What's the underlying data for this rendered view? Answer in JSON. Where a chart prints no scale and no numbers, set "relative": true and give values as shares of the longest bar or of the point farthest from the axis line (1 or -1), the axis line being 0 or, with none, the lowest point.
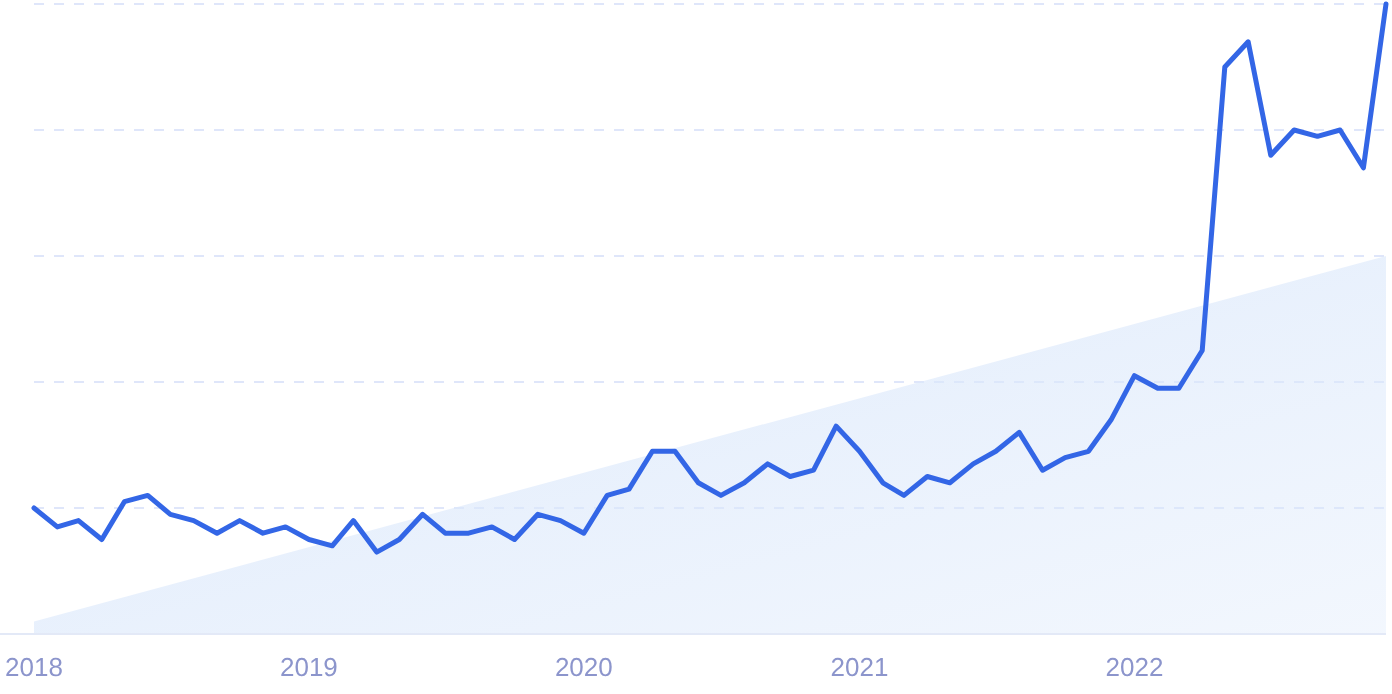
{
  "chart_data": {
    "type": "line",
    "relative": true,
    "grid": "y",
    "xlim": [
      "2018-01",
      "2022-12"
    ],
    "xticks": [
      "2018",
      "2019",
      "2020",
      "2021",
      "2022"
    ],
    "x": [
      "2018-01",
      "2018-02",
      "2018-03",
      "2018-04",
      "2018-05",
      "2018-06",
      "2018-07",
      "2018-08",
      "2018-09",
      "2018-10",
      "2018-11",
      "2018-12",
      "2019-01",
      "2019-02",
      "2019-03",
      "2019-04",
      "2019-05",
      "2019-06",
      "2019-07",
      "2019-08",
      "2019-09",
      "2019-10",
      "2019-11",
      "2019-12",
      "2020-01",
      "2020-02",
      "2020-03",
      "2020-04",
      "2020-05",
      "2020-06",
      "2020-07",
      "2020-08",
      "2020-09",
      "2020-10",
      "2020-11",
      "2020-12",
      "2021-01",
      "2021-02",
      "2021-03",
      "2021-04",
      "2021-05",
      "2021-06",
      "2021-07",
      "2021-08",
      "2021-09",
      "2021-10",
      "2021-11",
      "2021-12",
      "2022-01",
      "2022-02",
      "2022-03",
      "2022-04",
      "2022-05",
      "2022-06",
      "2022-07",
      "2022-08",
      "2022-09",
      "2022-10",
      "2022-11",
      "2022-12"
    ],
    "series": [
      {
        "type": "area",
        "color": "#dbe8fb",
        "x": [
          "2018-01",
          "2022-12"
        ],
        "values": [
          0.02,
          0.6
        ]
      },
      {
        "color": "#3366e6",
        "values": [
          0.2,
          0.17,
          0.18,
          0.15,
          0.21,
          0.22,
          0.19,
          0.18,
          0.16,
          0.18,
          0.16,
          0.17,
          0.15,
          0.14,
          0.18,
          0.13,
          0.15,
          0.19,
          0.16,
          0.16,
          0.17,
          0.15,
          0.19,
          0.18,
          0.16,
          0.22,
          0.23,
          0.29,
          0.29,
          0.24,
          0.22,
          0.24,
          0.27,
          0.25,
          0.26,
          0.33,
          0.29,
          0.24,
          0.22,
          0.25,
          0.24,
          0.27,
          0.29,
          0.32,
          0.26,
          0.28,
          0.29,
          0.34,
          0.41,
          0.39,
          0.39,
          0.45,
          0.9,
          0.94,
          0.76,
          0.8,
          0.79,
          0.8,
          0.74,
          1
        ]
      }
    ]
  }
}
